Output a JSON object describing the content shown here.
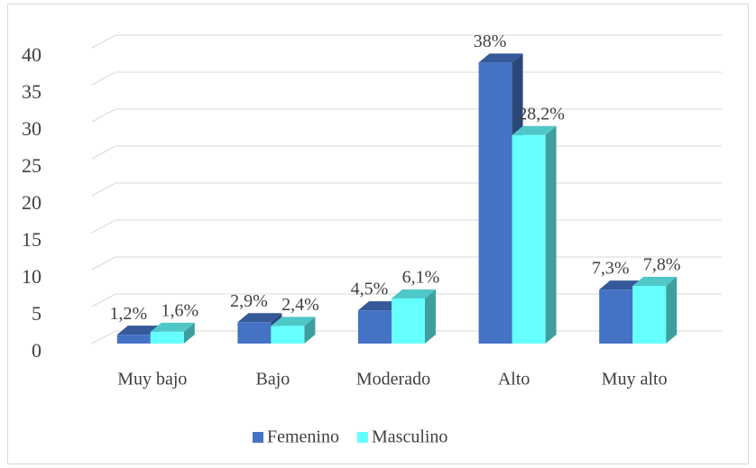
{
  "chart_data": {
    "type": "bar3d",
    "categories": [
      "Muy bajo",
      "Bajo",
      "Moderado",
      "Alto",
      "Muy alto"
    ],
    "series": [
      {
        "name": "Femenino",
        "color": "#4472c4",
        "values": [
          1.2,
          2.9,
          4.5,
          38,
          7.3
        ],
        "value_labels": [
          "1,2%",
          "2,9%",
          "4,5%",
          "38%",
          "7,3%"
        ]
      },
      {
        "name": "Masculino",
        "color": "#66ffff",
        "values": [
          1.6,
          2.4,
          6.1,
          28.2,
          7.8
        ],
        "value_labels": [
          "1,6%",
          "2,4%",
          "6,1%",
          "28,2%",
          "7,8%"
        ]
      }
    ],
    "ylim": [
      0,
      40
    ],
    "yticks": [
      0,
      5,
      10,
      15,
      20,
      25,
      30,
      35,
      40
    ],
    "grid": true,
    "legend": "bottom"
  }
}
